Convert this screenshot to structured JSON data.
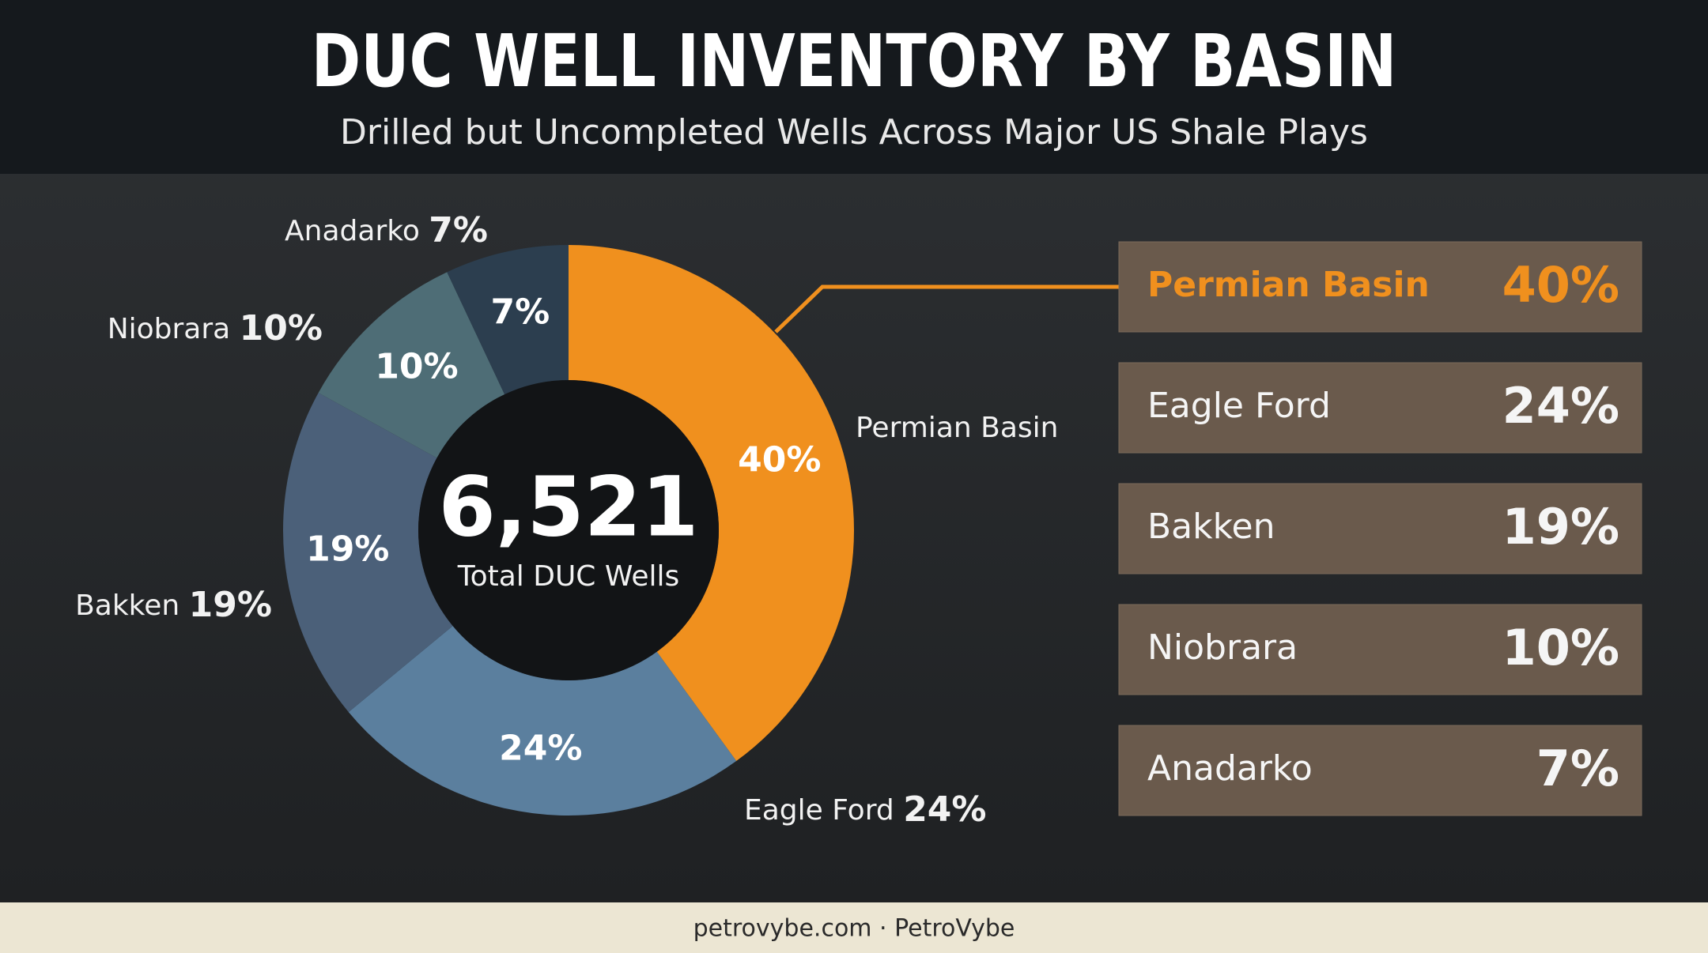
{
  "header": {
    "title": "DUC WELL INVENTORY BY BASIN",
    "subtitle": "Drilled but Uncompleted Wells Across Major US Shale Plays"
  },
  "chart_data": {
    "type": "donut",
    "categories": [
      "Permian Basin",
      "Eagle Ford",
      "Bakken",
      "Niobrara",
      "Anadarko"
    ],
    "values": [
      40,
      24,
      19,
      10,
      7
    ],
    "value_labels": [
      "40%",
      "24%",
      "19%",
      "10%",
      "7%"
    ],
    "colors": [
      "#f0901e",
      "#5b7f9e",
      "#4b6079",
      "#4e6d76",
      "#2c3e4f"
    ],
    "center_value": "6,521",
    "center_text": "Total DUC Wells"
  },
  "footer": {
    "text": "petrovybe.com · PetroVybe"
  }
}
